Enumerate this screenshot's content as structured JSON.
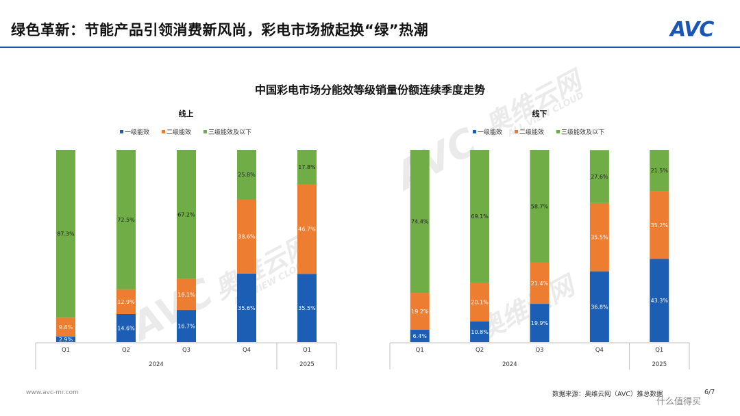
{
  "header": {
    "title": "绿色革新：节能产品引领消费新风尚，彩电市场掀起换“绿”热潮",
    "logo_text": "AVC"
  },
  "page_title": "中国彩电市场分能效等级销量份额连续季度走势",
  "legend": [
    "一级能效",
    "二级能效",
    "三级能效及以下"
  ],
  "colors": {
    "level1": "#1b5eb4",
    "level2": "#ed7d31",
    "level3": "#70ad47",
    "accent": "#1a56b8"
  },
  "watermark": [
    "AVC",
    "奥维云网",
    "ALL VIEW CLOUD"
  ],
  "footer": {
    "website": "www.avc-mr.com",
    "source": "数据来源：奥维云网（AVC）推总数据",
    "page": "6/7",
    "credit": "什么值得买"
  },
  "chart_data": [
    {
      "type": "bar",
      "stacked": true,
      "title": "线上",
      "categories": [
        "Q1",
        "Q2",
        "Q3",
        "Q4",
        "Q1"
      ],
      "groups": [
        {
          "label": "2024",
          "span": 4
        },
        {
          "label": "2025",
          "span": 1
        }
      ],
      "series": [
        {
          "name": "一级能效",
          "values": [
            2.9,
            14.6,
            16.7,
            35.6,
            35.5
          ],
          "labels": [
            "2.9%",
            "14.6%",
            "16.7%",
            "35.6%",
            "35.5%"
          ]
        },
        {
          "name": "二级能效",
          "values": [
            9.8,
            12.9,
            16.1,
            38.6,
            46.7
          ],
          "labels": [
            "9.8%",
            "12.9%",
            "16.1%",
            "38.6%",
            "46.7%"
          ]
        },
        {
          "name": "三级能效及以下",
          "values": [
            87.3,
            72.5,
            67.2,
            25.8,
            17.8
          ],
          "labels": [
            "87.3%",
            "72.5%",
            "67.2%",
            "25.8%",
            "17.8%"
          ]
        }
      ],
      "ylim": [
        0,
        100
      ]
    },
    {
      "type": "bar",
      "stacked": true,
      "title": "线下",
      "categories": [
        "Q1",
        "Q2",
        "Q3",
        "Q4",
        "Q1"
      ],
      "groups": [
        {
          "label": "2024",
          "span": 4
        },
        {
          "label": "2025",
          "span": 1
        }
      ],
      "series": [
        {
          "name": "一级能效",
          "values": [
            6.4,
            10.8,
            19.9,
            36.8,
            43.3
          ],
          "labels": [
            "6.4%",
            "10.8%",
            "19.9%",
            "36.8%",
            "43.3%"
          ]
        },
        {
          "name": "二级能效",
          "values": [
            19.2,
            20.1,
            21.4,
            35.5,
            35.2
          ],
          "labels": [
            "19.2%",
            "20.1%",
            "21.4%",
            "35.5%",
            "35.2%"
          ]
        },
        {
          "name": "三级能效及以下",
          "values": [
            74.4,
            69.1,
            58.7,
            27.6,
            21.5
          ],
          "labels": [
            "74.4%",
            "69.1%",
            "58.7%",
            "27.6%",
            "21.5%"
          ]
        }
      ],
      "ylim": [
        0,
        100
      ]
    }
  ]
}
